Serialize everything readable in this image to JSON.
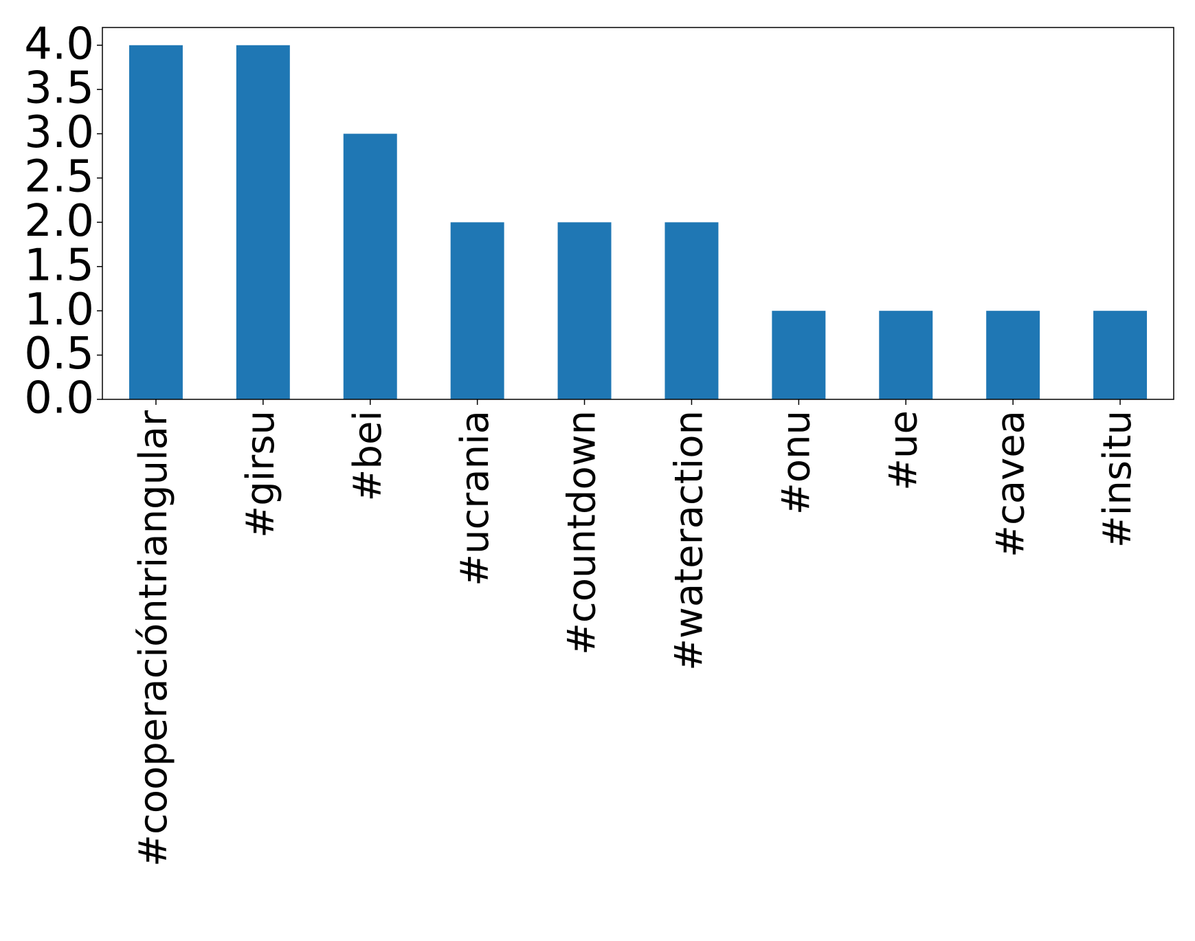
{
  "chart_data": {
    "type": "bar",
    "categories": [
      "#cooperacióntriangular",
      "#girsu",
      "#bei",
      "#ucrania",
      "#countdown",
      "#wateraction",
      "#onu",
      "#ue",
      "#cavea",
      "#insitu"
    ],
    "values": [
      4,
      4,
      3,
      2,
      2,
      2,
      1,
      1,
      1,
      1
    ],
    "color": "#1f77b4",
    "ylim": [
      0,
      4.2
    ],
    "yticks": [
      {
        "value": 0,
        "label": "0.0"
      },
      0.5,
      {
        "value": 1,
        "label": "1.0"
      },
      1.5,
      {
        "value": 2,
        "label": "2.0"
      },
      2.5,
      {
        "value": 3,
        "label": "3.0"
      },
      3.5,
      {
        "value": 4,
        "label": "4.0"
      }
    ],
    "grid": false
  }
}
